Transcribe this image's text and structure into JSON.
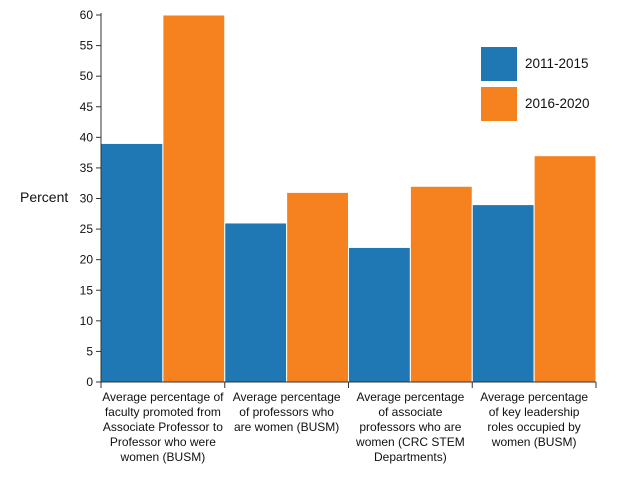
{
  "chart_data": {
    "type": "bar",
    "title": "",
    "xlabel": "",
    "ylabel": "Percent",
    "ylim": [
      0,
      60
    ],
    "yticks": [
      0,
      5,
      10,
      15,
      20,
      25,
      30,
      35,
      40,
      45,
      50,
      55,
      60
    ],
    "grid": false,
    "legend_position": "top-right",
    "categories": [
      [
        "Average percentage of",
        "faculty promoted from",
        "Associate Professor to",
        "Professor who were",
        "women (BUSM)"
      ],
      [
        "Average percentage",
        "of professors who",
        "are women (BUSM)"
      ],
      [
        "Average percentage",
        "of associate",
        "professors who are",
        "women (CRC STEM",
        "Departments)"
      ],
      [
        "Average percentage",
        "of key leadership",
        "roles occupied by",
        "women (BUSM)"
      ]
    ],
    "series": [
      {
        "name": "2011-2015",
        "color": "#1f77b4",
        "values": [
          39,
          26,
          22,
          29
        ]
      },
      {
        "name": "2016-2020",
        "color": "#f5821f",
        "values": [
          60,
          31,
          32,
          37
        ]
      }
    ]
  }
}
